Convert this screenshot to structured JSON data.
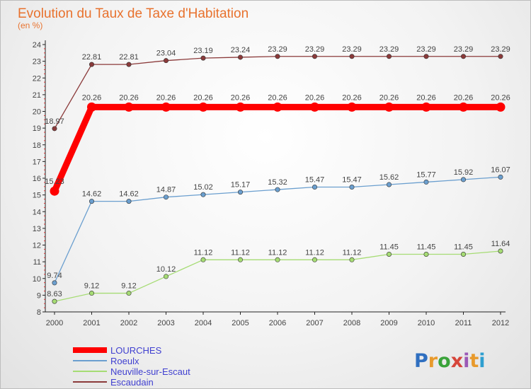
{
  "chart_data": {
    "type": "line",
    "title": "Evolution du Taux de Taxe d'Habitation",
    "subtitle": "(en %)",
    "x": [
      "2000",
      "2001",
      "2002",
      "2003",
      "2004",
      "2005",
      "2006",
      "2007",
      "2008",
      "2009",
      "2010",
      "2011",
      "2012"
    ],
    "ylim": [
      8,
      24
    ],
    "yticks": [
      8,
      9,
      10,
      11,
      12,
      13,
      14,
      15,
      16,
      17,
      18,
      19,
      20,
      21,
      22,
      23,
      24
    ],
    "grid": false,
    "legend_position": "bottom-left",
    "series": [
      {
        "name": "LOURCHES",
        "color": "#ff0000",
        "values": [
          15.23,
          20.26,
          20.26,
          20.26,
          20.26,
          20.26,
          20.26,
          20.26,
          20.26,
          20.26,
          20.26,
          20.26,
          20.26
        ],
        "labels": [
          "15.23",
          "20.26",
          "20.26",
          "20.26",
          "20.26",
          "20.26",
          "20.26",
          "20.26",
          "20.26",
          "20.26",
          "20.26",
          "20.26",
          "20.26"
        ]
      },
      {
        "name": "Roeulx",
        "color": "#6b9fcf",
        "values": [
          9.74,
          14.62,
          14.62,
          14.87,
          15.02,
          15.17,
          15.32,
          15.47,
          15.47,
          15.62,
          15.77,
          15.92,
          16.07
        ],
        "labels": [
          "9.74",
          "14.62",
          "14.62",
          "14.87",
          "15.02",
          "15.17",
          "15.32",
          "15.47",
          "15.47",
          "15.62",
          "15.77",
          "15.92",
          "16.07"
        ]
      },
      {
        "name": "Neuville-sur-Escaut",
        "color": "#a6dc74",
        "values": [
          8.63,
          9.12,
          9.12,
          10.12,
          11.12,
          11.12,
          11.12,
          11.12,
          11.12,
          11.45,
          11.45,
          11.45,
          11.64
        ],
        "labels": [
          "8.63",
          "9.12",
          "9.12",
          "10.12",
          "11.12",
          "11.12",
          "11.12",
          "11.12",
          "11.12",
          "11.45",
          "11.45",
          "11.45",
          "11.64"
        ]
      },
      {
        "name": "Escaudain",
        "color": "#8b3a3a",
        "values": [
          18.97,
          22.81,
          22.81,
          23.04,
          23.19,
          23.24,
          23.29,
          23.29,
          23.29,
          23.29,
          23.29,
          23.29,
          23.29
        ],
        "labels": [
          "18.97",
          "22.81",
          "22.81",
          "23.04",
          "23.19",
          "23.24",
          "23.29",
          "23.29",
          "23.29",
          "23.29",
          "23.29",
          "23.29",
          "23.29"
        ]
      }
    ]
  },
  "logo": {
    "letters": [
      "P",
      "r",
      "o",
      "x",
      "i",
      "t",
      "i"
    ],
    "colors": [
      "#2f6fc0",
      "#e89a2c",
      "#3aa33a",
      "#d6453a",
      "#9b59b6",
      "#e89a2c",
      "#2f9fd0"
    ]
  }
}
